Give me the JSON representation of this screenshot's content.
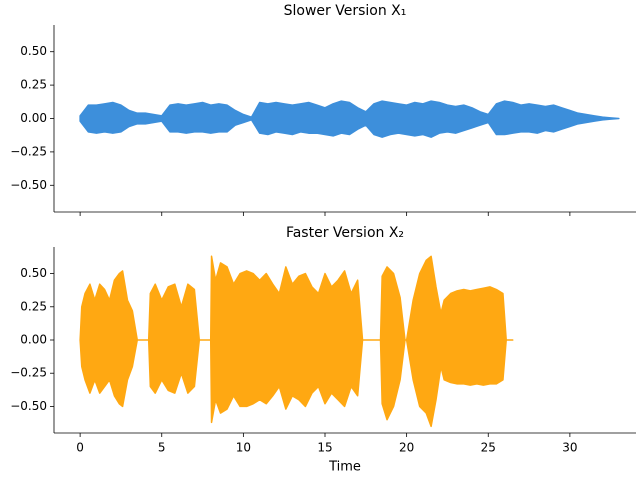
{
  "chart_data": [
    {
      "type": "area",
      "title": "Slower Version X₁",
      "color": "#3d8fdb",
      "x": [
        0,
        0.5,
        1,
        1.5,
        2,
        2.5,
        3,
        3.5,
        4,
        4.5,
        5,
        5.5,
        6,
        6.5,
        7,
        7.5,
        8,
        8.5,
        9,
        9.5,
        10,
        10.5,
        11,
        11.5,
        12,
        12.5,
        13,
        13.5,
        14,
        14.5,
        15,
        15.5,
        16,
        16.5,
        17,
        17.5,
        18,
        18.5,
        19,
        19.5,
        20,
        20.5,
        21,
        21.5,
        22,
        22.5,
        23,
        23.5,
        24,
        24.5,
        25,
        25.5,
        26,
        26.5,
        27,
        27.5,
        28,
        28.5,
        29,
        29.5,
        30,
        30.5,
        31,
        31.5,
        32,
        32.5,
        33
      ],
      "y_upper": [
        0.02,
        0.1,
        0.1,
        0.11,
        0.12,
        0.1,
        0.06,
        0.04,
        0.04,
        0.03,
        0.02,
        0.1,
        0.11,
        0.1,
        0.11,
        0.12,
        0.1,
        0.11,
        0.1,
        0.06,
        0.03,
        0.01,
        0.12,
        0.11,
        0.12,
        0.11,
        0.1,
        0.11,
        0.12,
        0.1,
        0.08,
        0.11,
        0.13,
        0.12,
        0.08,
        0.05,
        0.11,
        0.13,
        0.12,
        0.11,
        0.1,
        0.12,
        0.11,
        0.13,
        0.12,
        0.1,
        0.09,
        0.1,
        0.08,
        0.05,
        0.03,
        0.11,
        0.13,
        0.12,
        0.1,
        0.11,
        0.1,
        0.09,
        0.1,
        0.08,
        0.06,
        0.04,
        0.03,
        0.02,
        0.01,
        0.005,
        0
      ],
      "y_lower": [
        -0.02,
        -0.1,
        -0.11,
        -0.1,
        -0.11,
        -0.1,
        -0.06,
        -0.04,
        -0.04,
        -0.03,
        -0.02,
        -0.1,
        -0.1,
        -0.11,
        -0.1,
        -0.1,
        -0.11,
        -0.1,
        -0.1,
        -0.05,
        -0.03,
        -0.01,
        -0.11,
        -0.12,
        -0.1,
        -0.11,
        -0.12,
        -0.1,
        -0.11,
        -0.11,
        -0.12,
        -0.13,
        -0.11,
        -0.12,
        -0.08,
        -0.05,
        -0.12,
        -0.14,
        -0.12,
        -0.11,
        -0.12,
        -0.13,
        -0.12,
        -0.14,
        -0.11,
        -0.1,
        -0.11,
        -0.09,
        -0.07,
        -0.05,
        -0.03,
        -0.12,
        -0.12,
        -0.11,
        -0.1,
        -0.1,
        -0.11,
        -0.09,
        -0.1,
        -0.08,
        -0.06,
        -0.04,
        -0.03,
        -0.02,
        -0.01,
        -0.005,
        0
      ],
      "xlim": [
        -1.6,
        34.05
      ],
      "xticks": [
        0,
        5,
        10,
        15,
        20,
        25,
        30
      ],
      "show_xtick_labels": false,
      "ylim": [
        -0.7,
        0.7
      ],
      "yticks": [
        {
          "value": -0.5,
          "label": "−0.50"
        },
        {
          "value": -0.25,
          "label": "−0.25"
        },
        {
          "value": 0,
          "label": "0.00"
        },
        {
          "value": 0.25,
          "label": "0.25"
        },
        {
          "value": 0.5,
          "label": "0.50"
        }
      ]
    },
    {
      "type": "area",
      "title": "Faster Version X₂",
      "color": "#ffa812",
      "xlabel": "Time",
      "x": [
        0,
        0.1,
        0.3,
        0.6,
        0.9,
        1.2,
        1.5,
        1.8,
        2.1,
        2.4,
        2.6,
        2.9,
        3.2,
        3.5,
        4.2,
        4.3,
        4.6,
        5.0,
        5.4,
        5.8,
        6.2,
        6.6,
        7.0,
        7.3,
        8.0,
        8.05,
        8.3,
        8.6,
        9.0,
        9.4,
        9.8,
        10.2,
        10.6,
        11.0,
        11.4,
        11.8,
        12.2,
        12.6,
        13.0,
        13.4,
        13.8,
        14.2,
        14.6,
        15.0,
        15.4,
        15.8,
        16.2,
        16.6,
        17.0,
        17.3,
        18.4,
        18.5,
        18.8,
        19.2,
        19.6,
        19.9,
        20.0,
        20.4,
        20.8,
        21.2,
        21.5,
        21.8,
        22.1,
        22.3,
        22.7,
        23.1,
        23.5,
        23.9,
        24.3,
        24.7,
        25.1,
        25.5,
        25.9,
        26.1,
        26.5
      ],
      "y_upper": [
        0,
        0.25,
        0.35,
        0.42,
        0.3,
        0.42,
        0.38,
        0.3,
        0.45,
        0.5,
        0.52,
        0.3,
        0.22,
        0,
        0,
        0.35,
        0.42,
        0.3,
        0.4,
        0.42,
        0.25,
        0.42,
        0.38,
        0,
        0,
        0.63,
        0.45,
        0.58,
        0.55,
        0.42,
        0.5,
        0.52,
        0.5,
        0.45,
        0.5,
        0.42,
        0.35,
        0.55,
        0.42,
        0.48,
        0.5,
        0.4,
        0.35,
        0.5,
        0.4,
        0.45,
        0.52,
        0.35,
        0.45,
        0,
        0,
        0.48,
        0.55,
        0.5,
        0.32,
        0,
        0,
        0.3,
        0.5,
        0.6,
        0.63,
        0.4,
        0.2,
        0.3,
        0.35,
        0.37,
        0.38,
        0.37,
        0.38,
        0.39,
        0.4,
        0.38,
        0.35,
        0,
        0
      ],
      "y_lower": [
        0,
        -0.2,
        -0.3,
        -0.4,
        -0.3,
        -0.4,
        -0.35,
        -0.3,
        -0.42,
        -0.48,
        -0.5,
        -0.3,
        -0.2,
        0,
        0,
        -0.35,
        -0.4,
        -0.3,
        -0.38,
        -0.4,
        -0.25,
        -0.4,
        -0.35,
        0,
        0,
        -0.62,
        -0.45,
        -0.55,
        -0.52,
        -0.42,
        -0.5,
        -0.5,
        -0.48,
        -0.45,
        -0.48,
        -0.42,
        -0.35,
        -0.52,
        -0.42,
        -0.45,
        -0.5,
        -0.4,
        -0.35,
        -0.48,
        -0.4,
        -0.45,
        -0.5,
        -0.35,
        -0.42,
        0,
        0,
        -0.48,
        -0.6,
        -0.5,
        -0.3,
        0,
        0,
        -0.3,
        -0.5,
        -0.55,
        -0.65,
        -0.45,
        -0.2,
        -0.3,
        -0.32,
        -0.33,
        -0.33,
        -0.34,
        -0.33,
        -0.34,
        -0.33,
        -0.33,
        -0.3,
        0,
        0
      ],
      "xlim": [
        -1.6,
        34.05
      ],
      "xticks": [
        0,
        5,
        10,
        15,
        20,
        25,
        30
      ],
      "show_xtick_labels": true,
      "ylim": [
        -0.7,
        0.7
      ],
      "yticks": [
        {
          "value": -0.5,
          "label": "−0.50"
        },
        {
          "value": -0.25,
          "label": "−0.25"
        },
        {
          "value": 0,
          "label": "0.00"
        },
        {
          "value": 0.25,
          "label": "0.25"
        },
        {
          "value": 0.5,
          "label": "0.50"
        }
      ]
    }
  ]
}
